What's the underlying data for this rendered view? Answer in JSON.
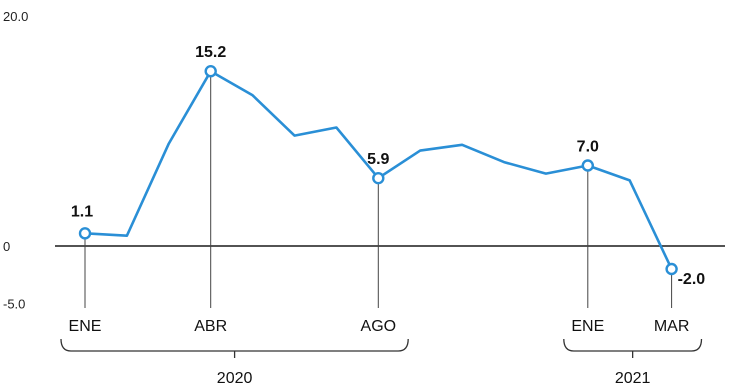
{
  "chart_data": {
    "type": "line",
    "title": "",
    "xlabel": "",
    "ylabel": "",
    "ylim": [
      -5.0,
      20.0
    ],
    "y_ticks": [
      "20.0",
      "0",
      "-5.0"
    ],
    "y_tick_values": [
      20.0,
      0,
      -5.0
    ],
    "grid": false,
    "line_color": "#2a8fd6",
    "baseline_color": "#1a1a1a",
    "series": [
      {
        "x": [
          0,
          1,
          2,
          3,
          4,
          5,
          6,
          7,
          8,
          9,
          10,
          11,
          12,
          13,
          14
        ],
        "values": [
          1.1,
          0.9,
          8.9,
          15.2,
          13.1,
          9.6,
          10.3,
          5.9,
          8.3,
          8.8,
          7.3,
          6.3,
          7.0,
          5.7,
          -2.0
        ]
      }
    ],
    "highlighted_points": [
      {
        "x": 0,
        "value": 1.1,
        "label": "1.1"
      },
      {
        "x": 3,
        "value": 15.2,
        "label": "15.2"
      },
      {
        "x": 7,
        "value": 5.9,
        "label": "5.9"
      },
      {
        "x": 12,
        "value": 7.0,
        "label": "7.0"
      },
      {
        "x": 14,
        "value": -2.0,
        "label": "-2.0"
      }
    ],
    "month_labels": [
      {
        "x": 0,
        "label": "ENE"
      },
      {
        "x": 3,
        "label": "ABR"
      },
      {
        "x": 7,
        "label": "AGO"
      },
      {
        "x": 12,
        "label": "ENE"
      },
      {
        "x": 14,
        "label": "MAR"
      }
    ],
    "years": [
      {
        "label": "2020",
        "from_x": 0,
        "to_x": 8
      },
      {
        "label": "2021",
        "from_x": 12,
        "to_x": 15
      }
    ]
  }
}
